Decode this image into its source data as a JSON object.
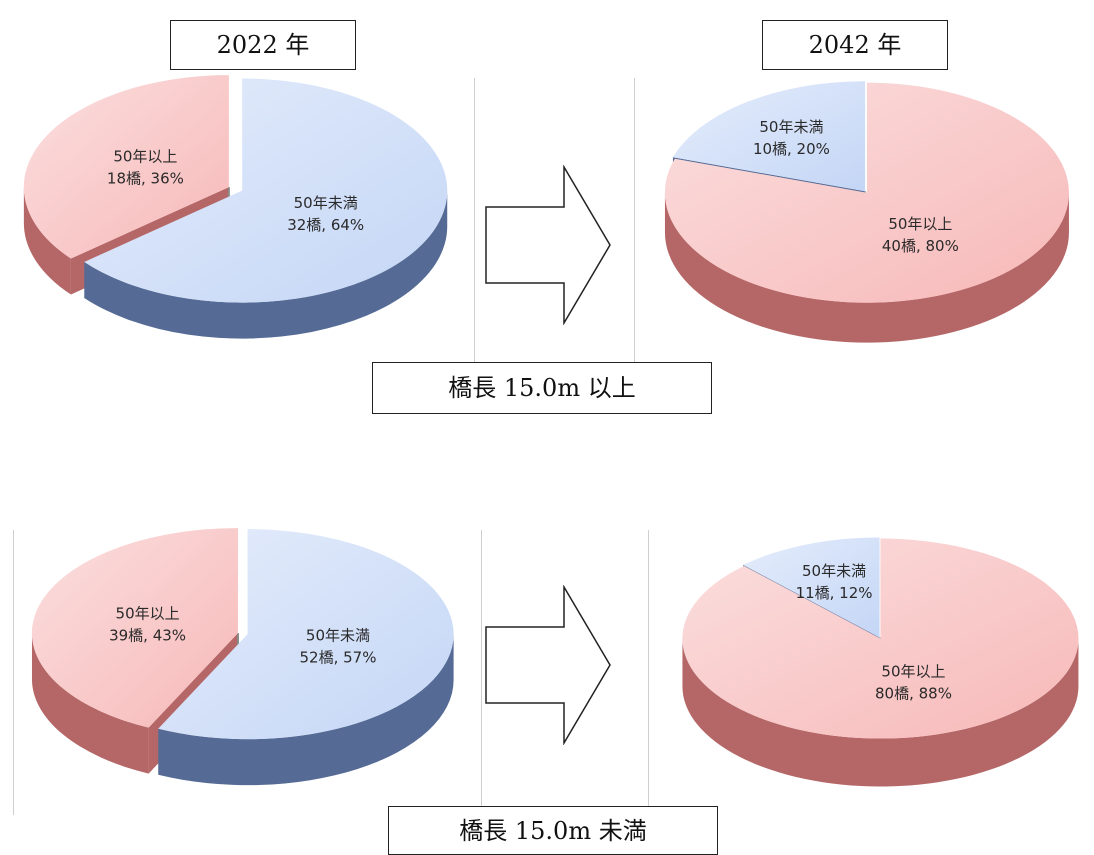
{
  "year_labels": {
    "left": "2022 年",
    "right": "2042 年"
  },
  "group_labels": {
    "top": "橋長 15.0m 以上",
    "bottom": "橋長 15.0m 未満"
  },
  "colors": {
    "under50": "#c4d6f6",
    "under50_side": "#556b96",
    "over50": "#f7b8b8",
    "over50_side": "#b56767"
  },
  "chart_data": [
    {
      "type": "pie",
      "year": "2022 年",
      "group": "橋長 15.0m 以上",
      "slices": [
        {
          "label": "50年以上",
          "text": "18橋, 36%",
          "count": 18,
          "percent": 36,
          "color": "over50"
        },
        {
          "label": "50年未満",
          "text": "32橋, 64%",
          "count": 32,
          "percent": 64,
          "color": "under50"
        }
      ]
    },
    {
      "type": "pie",
      "year": "2042 年",
      "group": "橋長 15.0m 以上",
      "slices": [
        {
          "label": "50年未満",
          "text": "10橋, 20%",
          "count": 10,
          "percent": 20,
          "color": "under50"
        },
        {
          "label": "50年以上",
          "text": "40橋, 80%",
          "count": 40,
          "percent": 80,
          "color": "over50"
        }
      ]
    },
    {
      "type": "pie",
      "year": "2022 年",
      "group": "橋長 15.0m 未満",
      "slices": [
        {
          "label": "50年以上",
          "text": "39橋, 43%",
          "count": 39,
          "percent": 43,
          "color": "over50"
        },
        {
          "label": "50年未満",
          "text": "52橋, 57%",
          "count": 52,
          "percent": 57,
          "color": "under50"
        }
      ]
    },
    {
      "type": "pie",
      "year": "2042 年",
      "group": "橋長 15.0m 未満",
      "slices": [
        {
          "label": "50年未満",
          "text": "11橋, 12%",
          "count": 11,
          "percent": 12,
          "color": "under50"
        },
        {
          "label": "50年以上",
          "text": "80橋, 88%",
          "count": 80,
          "percent": 88,
          "color": "over50"
        }
      ]
    }
  ]
}
